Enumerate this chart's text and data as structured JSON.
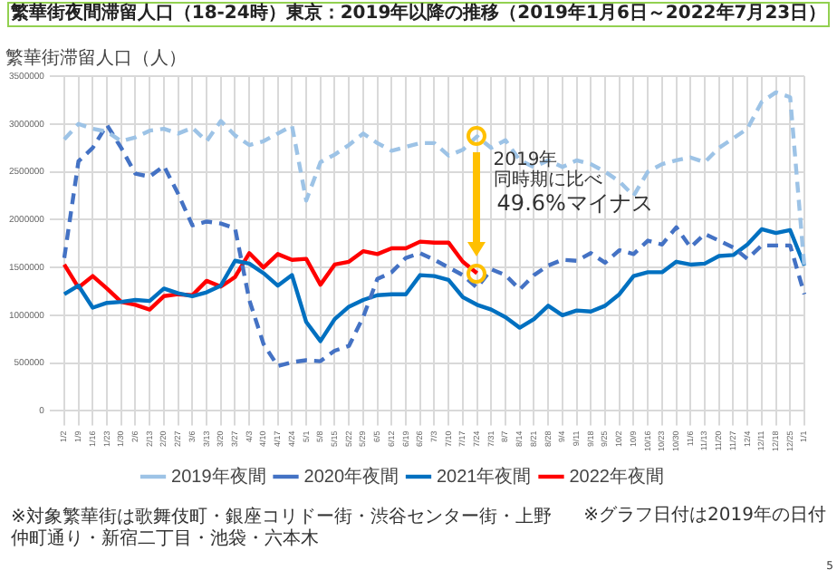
{
  "chart_data": {
    "type": "line",
    "title": "繁華街夜間滞留人口（18-24時）東京：2019年以降の推移（2019年1月6日～2022年7月23日）",
    "ylabel": "繁華街滞留人口（人）",
    "categories": [
      "1/2",
      "1/9",
      "1/16",
      "1/23",
      "1/30",
      "2/6",
      "2/13",
      "2/20",
      "2/27",
      "3/6",
      "3/13",
      "3/20",
      "3/27",
      "4/3",
      "4/10",
      "4/17",
      "4/24",
      "5/1",
      "5/8",
      "5/15",
      "5/22",
      "5/29",
      "6/5",
      "6/12",
      "6/19",
      "6/26",
      "7/3",
      "7/10",
      "7/17",
      "7/24",
      "7/31",
      "8/7",
      "8/14",
      "8/21",
      "8/28",
      "9/4",
      "9/11",
      "9/18",
      "9/25",
      "10/2",
      "10/9",
      "10/16",
      "10/23",
      "10/30",
      "11/6",
      "11/13",
      "11/20",
      "11/27",
      "12/4",
      "12/11",
      "12/18",
      "12/25",
      "1/1"
    ],
    "series": [
      {
        "name": "2019年夜間",
        "color": "#9dc3e6",
        "line_style": "dashed",
        "values": [
          2840000,
          3000000,
          2950000,
          2920000,
          2820000,
          2860000,
          2930000,
          2950000,
          2900000,
          2960000,
          2820000,
          3030000,
          2880000,
          2780000,
          2820000,
          2900000,
          2980000,
          2200000,
          2600000,
          2680000,
          2780000,
          2900000,
          2800000,
          2720000,
          2760000,
          2800000,
          2800000,
          2670000,
          2730000,
          2870000,
          2750000,
          2830000,
          2620000,
          2550000,
          2620000,
          2550000,
          2620000,
          2580000,
          2500000,
          2400000,
          2250000,
          2500000,
          2580000,
          2620000,
          2650000,
          2600000,
          2750000,
          2850000,
          2950000,
          3230000,
          3330000,
          3280000,
          1500000
        ]
      },
      {
        "name": "2020年夜間",
        "color": "#4472c4",
        "line_style": "dashed",
        "values": [
          1600000,
          2610000,
          2750000,
          2990000,
          2750000,
          2480000,
          2450000,
          2560000,
          2270000,
          1940000,
          1980000,
          1960000,
          1910000,
          1160000,
          700000,
          470000,
          510000,
          530000,
          520000,
          630000,
          680000,
          980000,
          1380000,
          1450000,
          1600000,
          1650000,
          1580000,
          1500000,
          1420000,
          1290000,
          1480000,
          1420000,
          1270000,
          1420000,
          1520000,
          1580000,
          1570000,
          1650000,
          1550000,
          1680000,
          1640000,
          1780000,
          1740000,
          1920000,
          1710000,
          1850000,
          1780000,
          1710000,
          1590000,
          1730000,
          1730000,
          1730000,
          1220000
        ]
      },
      {
        "name": "2021年夜間",
        "color": "#0070c0",
        "line_style": "solid",
        "values": [
          1220000,
          1310000,
          1080000,
          1130000,
          1140000,
          1160000,
          1150000,
          1280000,
          1230000,
          1200000,
          1240000,
          1310000,
          1570000,
          1540000,
          1440000,
          1310000,
          1420000,
          930000,
          730000,
          960000,
          1090000,
          1160000,
          1210000,
          1220000,
          1220000,
          1420000,
          1410000,
          1370000,
          1190000,
          1110000,
          1060000,
          980000,
          870000,
          960000,
          1100000,
          1000000,
          1050000,
          1040000,
          1100000,
          1220000,
          1410000,
          1450000,
          1450000,
          1560000,
          1530000,
          1540000,
          1620000,
          1630000,
          1740000,
          1900000,
          1860000,
          1890000,
          1520000
        ]
      },
      {
        "name": "2022年夜間",
        "color": "#ff0000",
        "line_style": "solid",
        "values": [
          1530000,
          1290000,
          1410000,
          1280000,
          1140000,
          1110000,
          1060000,
          1200000,
          1220000,
          1210000,
          1360000,
          1300000,
          1400000,
          1650000,
          1500000,
          1640000,
          1580000,
          1590000,
          1320000,
          1530000,
          1560000,
          1670000,
          1640000,
          1700000,
          1700000,
          1770000,
          1760000,
          1760000,
          1560000,
          1440000,
          null,
          null,
          null,
          null,
          null,
          null,
          null,
          null,
          null,
          null,
          null,
          null,
          null,
          null,
          null,
          null,
          null,
          null,
          null,
          null,
          null,
          null,
          null
        ]
      }
    ],
    "ylim": [
      0,
      3500000
    ],
    "yticks": [
      0,
      500000,
      1000000,
      1500000,
      2000000,
      2500000,
      3000000,
      3500000
    ],
    "grid": true,
    "legend": "bottom",
    "marker": "none",
    "annotations": [
      "2019年",
      "同時期に比べ",
      "49.6%マイナス",
      "※グラフ日付は2019年の日付",
      "※対象繁華街は歌舞伎町・銀座コリドー街・渋谷センター街・上野仲町通り・新宿二丁目・池袋・六本木",
      "5"
    ]
  }
}
